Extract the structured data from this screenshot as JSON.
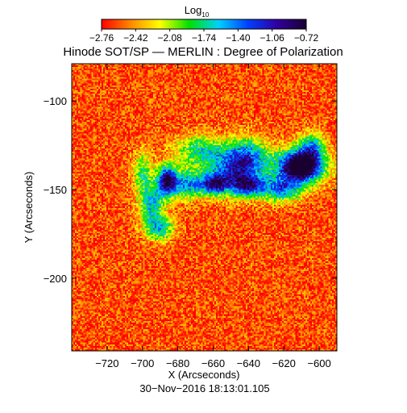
{
  "chart_data": {
    "type": "heatmap",
    "title": "Hinode SOT/SP — MERLIN : Degree of Polarization",
    "colorbar": {
      "label_main": "Log",
      "label_sub": "10",
      "ticks": [
        "−2.76",
        "−2.42",
        "−2.08",
        "−1.74",
        "−1.40",
        "−1.06",
        "−0.72"
      ],
      "range": [
        -2.76,
        -0.72
      ],
      "colormap": "rainbow",
      "colors": [
        "#ff0000",
        "#ff8800",
        "#ffff00",
        "#00e000",
        "#00d0ff",
        "#0040ff",
        "#3000a0",
        "#1a0030"
      ]
    },
    "xlabel": "X (Arcseconds)",
    "ylabel": "Y (Arcseconds)",
    "xlim": [
      -740,
      -590
    ],
    "ylim": [
      -241,
      -79
    ],
    "x_ticks": [
      {
        "value": -720,
        "label": "−720"
      },
      {
        "value": -700,
        "label": "−700"
      },
      {
        "value": -680,
        "label": "−680"
      },
      {
        "value": -660,
        "label": "−660"
      },
      {
        "value": -640,
        "label": "−640"
      },
      {
        "value": -620,
        "label": "−620"
      },
      {
        "value": -600,
        "label": "−600"
      }
    ],
    "y_ticks": [
      {
        "value": -100,
        "label": "−100"
      },
      {
        "value": -150,
        "label": "−150"
      },
      {
        "value": -200,
        "label": "−200"
      }
    ],
    "background_log_degree": -2.6,
    "features": [
      {
        "x": -611,
        "y": -137,
        "sigma_x": 10,
        "sigma_y": 7,
        "amplitude": 1.9
      },
      {
        "x": -610,
        "y": -137,
        "sigma_x": 5,
        "sigma_y": 4,
        "amplitude": 0.8
      },
      {
        "x": -686,
        "y": -145,
        "sigma_x": 4,
        "sigma_y": 6,
        "amplitude": 1.7
      },
      {
        "x": -675,
        "y": -147,
        "sigma_x": 6,
        "sigma_y": 6,
        "amplitude": 1.0
      },
      {
        "x": -660,
        "y": -147,
        "sigma_x": 6,
        "sigma_y": 4,
        "amplitude": 1.3
      },
      {
        "x": -650,
        "y": -140,
        "sigma_x": 10,
        "sigma_y": 9,
        "amplitude": 1.1
      },
      {
        "x": -640,
        "y": -132,
        "sigma_x": 8,
        "sigma_y": 8,
        "amplitude": 1.0
      },
      {
        "x": -640,
        "y": -148,
        "sigma_x": 6,
        "sigma_y": 4,
        "amplitude": 1.2
      },
      {
        "x": -695,
        "y": -158,
        "sigma_x": 5,
        "sigma_y": 8,
        "amplitude": 1.0
      },
      {
        "x": -690,
        "y": -172,
        "sigma_x": 6,
        "sigma_y": 5,
        "amplitude": 0.9
      },
      {
        "x": -668,
        "y": -128,
        "sigma_x": 10,
        "sigma_y": 6,
        "amplitude": 0.8
      },
      {
        "x": -622,
        "y": -150,
        "sigma_x": 8,
        "sigma_y": 5,
        "amplitude": 1.1
      },
      {
        "x": -604,
        "y": -126,
        "sigma_x": 5,
        "sigma_y": 6,
        "amplitude": 0.9
      },
      {
        "x": -700,
        "y": -140,
        "sigma_x": 4,
        "sigma_y": 8,
        "amplitude": 0.7
      }
    ],
    "grid": false,
    "legend": "colorbar-top"
  },
  "timestamp": "30−Nov−2016 18:13:01.105"
}
